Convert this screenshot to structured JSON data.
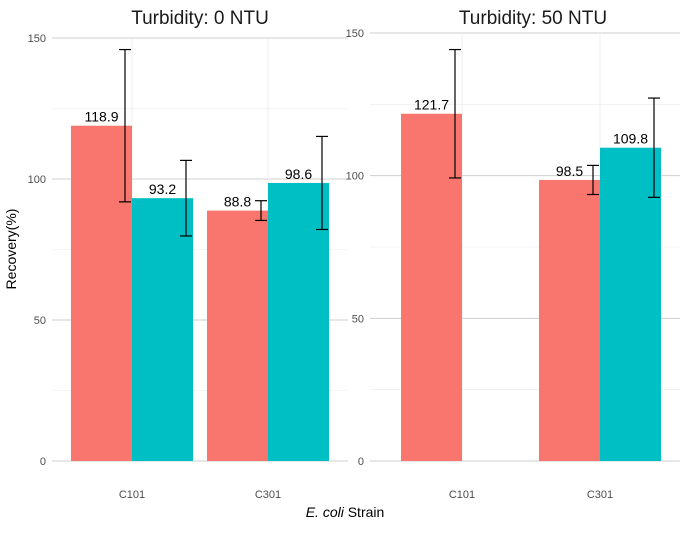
{
  "chart_data": {
    "type": "bar",
    "ylabel": "Recovery(%)",
    "xlabel_italic": "E. coli",
    "xlabel_rest": " Strain",
    "categories": [
      "C101",
      "C301"
    ],
    "series_colors": [
      "#F8766D",
      "#00BFC4"
    ],
    "panels": [
      {
        "title": "Turbidity: 0 NTU",
        "ylim": [
          0,
          150
        ],
        "yticks": [
          0,
          50,
          100,
          150
        ],
        "bars": [
          {
            "category": "C101",
            "series_index": 0,
            "value": 118.9,
            "label": "118.9",
            "err_low": 91.9,
            "err_high": 145.9
          },
          {
            "category": "C101",
            "series_index": 1,
            "value": 93.2,
            "label": "93.2",
            "err_low": 79.8,
            "err_high": 106.6
          },
          {
            "category": "C301",
            "series_index": 0,
            "value": 88.8,
            "label": "88.8",
            "err_low": 85.3,
            "err_high": 92.3
          },
          {
            "category": "C301",
            "series_index": 1,
            "value": 98.6,
            "label": "98.6",
            "err_low": 82.1,
            "err_high": 115.1
          }
        ]
      },
      {
        "title": "Turbidity: 50 NTU",
        "ylim": [
          0,
          150
        ],
        "yticks": [
          0,
          50,
          100,
          150
        ],
        "bars": [
          {
            "category": "C101",
            "series_index": 0,
            "value": 121.7,
            "label": "121.7",
            "err_low": 99.2,
            "err_high": 144.2
          },
          {
            "category": "C301",
            "series_index": 0,
            "value": 98.5,
            "label": "98.5",
            "err_low": 93.4,
            "err_high": 103.6
          },
          {
            "category": "C301",
            "series_index": 1,
            "value": 109.8,
            "label": "109.8",
            "err_low": 92.4,
            "err_high": 127.2
          }
        ]
      }
    ]
  }
}
